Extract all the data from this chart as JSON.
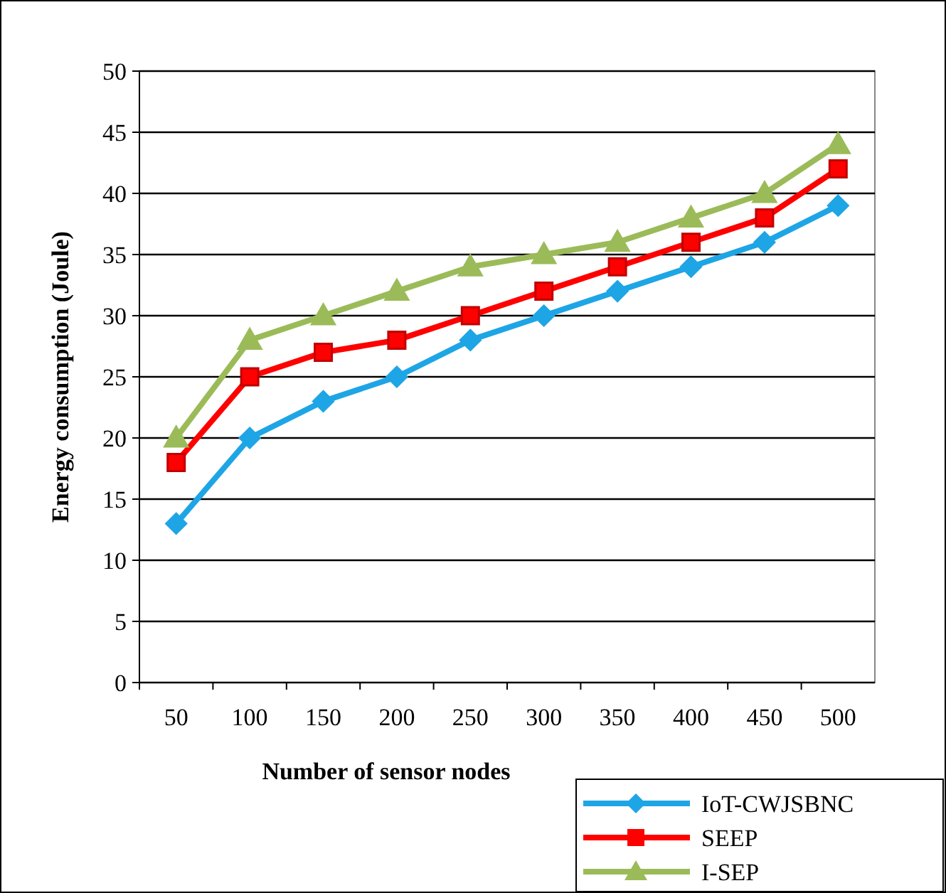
{
  "chart_data": {
    "type": "line",
    "xlabel": "Number of sensor nodes",
    "ylabel": "Energy consumption (Joule)",
    "categories": [
      "50",
      "100",
      "150",
      "200",
      "250",
      "300",
      "350",
      "400",
      "450",
      "500"
    ],
    "series": [
      {
        "name": "IoT-CWJSBNC",
        "color": "#1ea5e6",
        "marker": "diamond",
        "values": [
          13,
          20,
          23,
          25,
          28,
          30,
          32,
          34,
          36,
          39
        ]
      },
      {
        "name": "SEEP",
        "color": "#ff0000",
        "marker": "square",
        "values": [
          18,
          25,
          27,
          28,
          30,
          32,
          34,
          36,
          38,
          42
        ]
      },
      {
        "name": "I-SEP",
        "color": "#9bbb59",
        "marker": "triangle",
        "values": [
          20,
          28,
          30,
          32,
          34,
          35,
          36,
          38,
          40,
          44
        ]
      }
    ],
    "ylim": [
      0,
      50
    ],
    "yticks": [
      0,
      5,
      10,
      15,
      20,
      25,
      30,
      35,
      40,
      45,
      50
    ],
    "grid": "y",
    "legend": "bottom right",
    "line_style": "solid"
  }
}
